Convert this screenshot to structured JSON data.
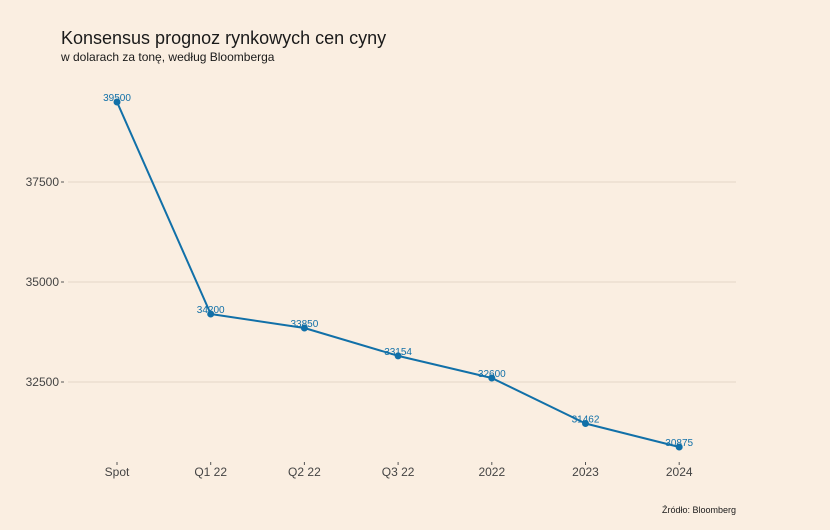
{
  "chart_data": {
    "type": "line",
    "title": "Konsensus prognoz rynkowych cen cyny",
    "subtitle": "w dolarach za tonę, według Bloomberga",
    "source": "Źródło: Bloomberg",
    "xlabel": "",
    "ylabel": "",
    "categories": [
      "Spot",
      "Q1 22",
      "Q2 22",
      "Q3 22",
      "2022",
      "2023",
      "2024"
    ],
    "series": [
      {
        "values": [
          39500,
          34200,
          33850,
          33154,
          32600,
          31462,
          30875
        ],
        "labels": [
          "39500",
          "34200",
          "33850",
          "33154",
          "32600",
          "31462",
          "30875"
        ],
        "color": "#1170a8"
      }
    ],
    "y_ticks": [
      {
        "value": 32500,
        "label": "32500"
      },
      {
        "value": 35000,
        "label": "35000"
      },
      {
        "value": 37500,
        "label": "37500"
      }
    ],
    "ylim": [
      30500,
      40050
    ],
    "grid": "horizontal",
    "legend": "none",
    "colors": {
      "background": "#faeee1",
      "gridline": "#e4d6c8",
      "line": "#1170a8"
    }
  }
}
